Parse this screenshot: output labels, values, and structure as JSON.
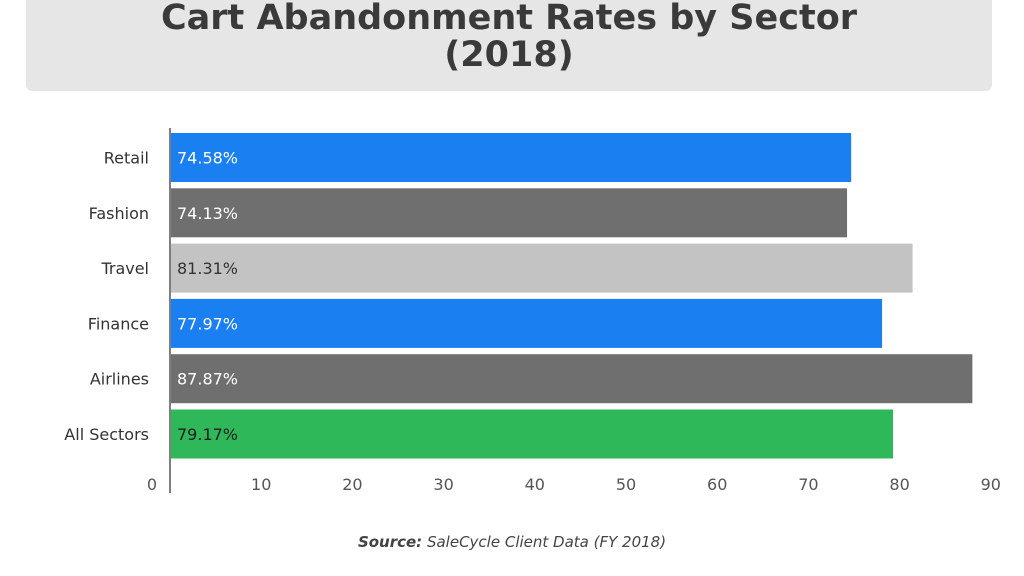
{
  "header": {
    "title_line1": "Cart Abandonment Rates by Sector",
    "title_line2": "(2018)"
  },
  "chart_data": {
    "type": "bar",
    "orientation": "horizontal",
    "title": "Cart Abandonment Rates by Sector (2018)",
    "categories": [
      "Retail",
      "Fashion",
      "Travel",
      "Finance",
      "Airlines",
      "All Sectors"
    ],
    "values": [
      74.58,
      74.13,
      81.31,
      77.97,
      87.87,
      79.17
    ],
    "value_labels": [
      "74.58%",
      "74.13%",
      "81.31%",
      "77.97%",
      "87.87%",
      "79.17%"
    ],
    "bar_colors": [
      "#1a7ff0",
      "#6f6f6f",
      "#c3c3c3",
      "#1a7ff0",
      "#6f6f6f",
      "#2fb85a"
    ],
    "label_colors": [
      "#ffffff",
      "#ffffff",
      "#333333",
      "#ffffff",
      "#ffffff",
      "#1d1d1d"
    ],
    "xlim": [
      0,
      90
    ],
    "xticks": [
      0,
      10,
      20,
      30,
      40,
      50,
      60,
      70,
      80,
      90
    ],
    "grid": false,
    "xlabel": "",
    "ylabel": ""
  },
  "footer": {
    "source_label": "Source:",
    "source_text": "SaleCycle Client Data (FY 2018)"
  }
}
